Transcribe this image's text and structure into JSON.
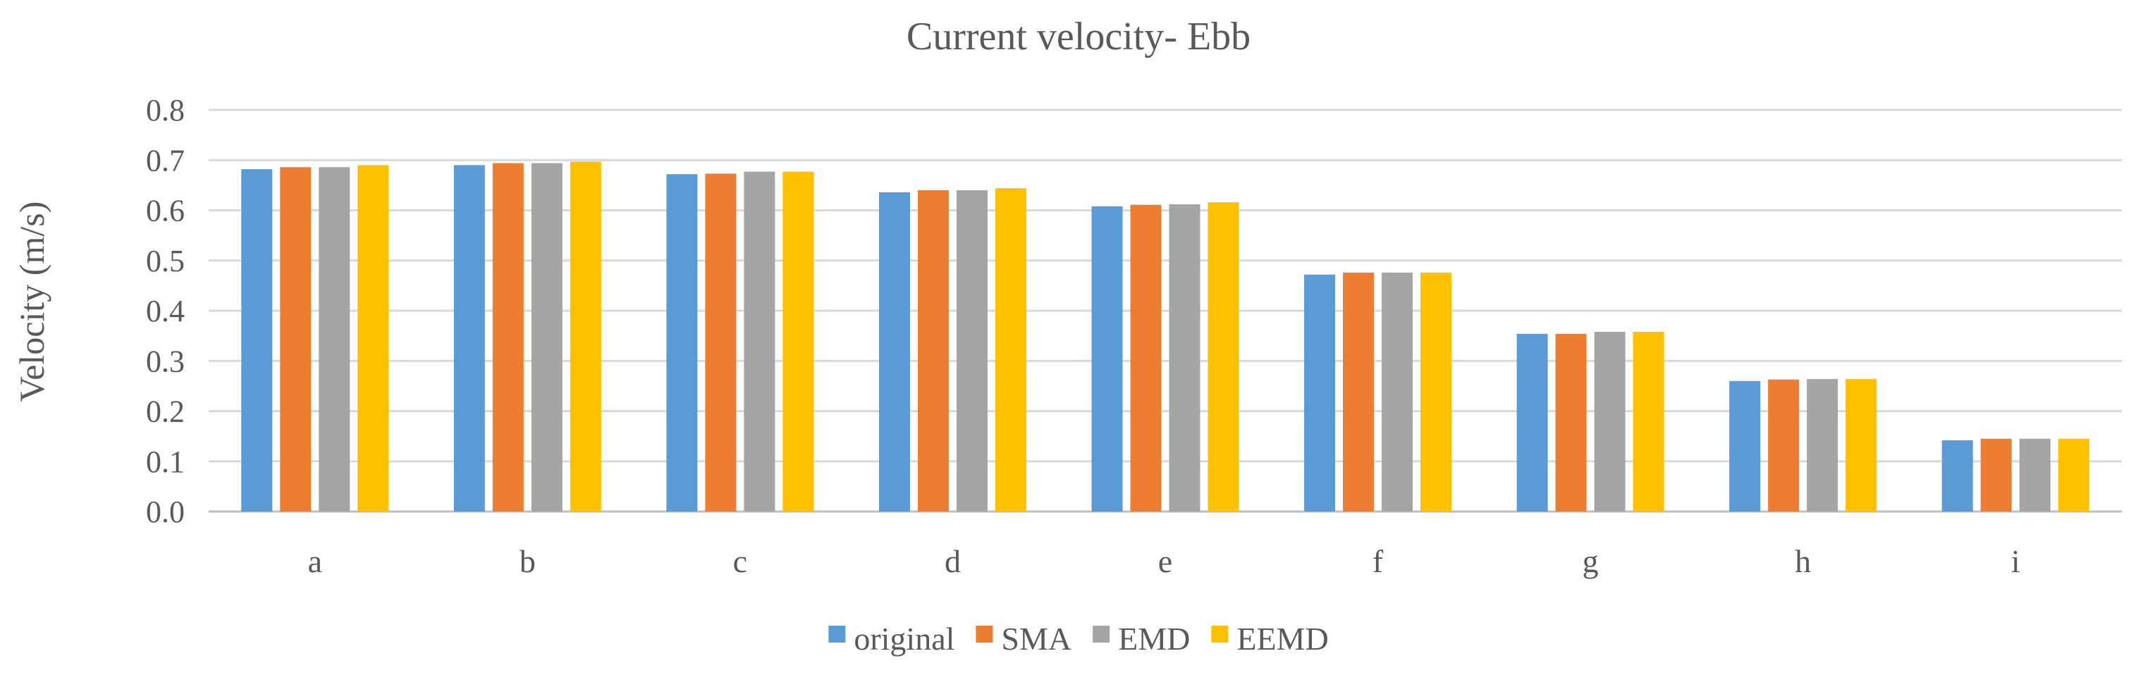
{
  "chart_data": {
    "type": "bar",
    "title": "Current velocity- Ebb",
    "xlabel": "",
    "ylabel": "Velocity (m/s)",
    "ylim": [
      0.0,
      0.8
    ],
    "yticks": [
      "0.0",
      "0.1",
      "0.2",
      "0.3",
      "0.4",
      "0.5",
      "0.6",
      "0.7",
      "0.8"
    ],
    "grid": true,
    "legend_position": "bottom",
    "categories": [
      "a",
      "b",
      "c",
      "d",
      "e",
      "f",
      "g",
      "h",
      "i"
    ],
    "series": [
      {
        "name": "original",
        "color": "#5b9bd5",
        "values": [
          0.682,
          0.69,
          0.672,
          0.636,
          0.608,
          0.472,
          0.354,
          0.26,
          0.142
        ]
      },
      {
        "name": "SMA",
        "color": "#ed7d31",
        "values": [
          0.686,
          0.694,
          0.673,
          0.64,
          0.611,
          0.476,
          0.354,
          0.263,
          0.145
        ]
      },
      {
        "name": "EMD",
        "color": "#a5a5a5",
        "values": [
          0.686,
          0.694,
          0.677,
          0.64,
          0.612,
          0.476,
          0.358,
          0.264,
          0.145
        ]
      },
      {
        "name": "EEMD",
        "color": "#ffc000",
        "values": [
          0.69,
          0.697,
          0.677,
          0.644,
          0.616,
          0.476,
          0.358,
          0.264,
          0.145
        ]
      }
    ]
  }
}
